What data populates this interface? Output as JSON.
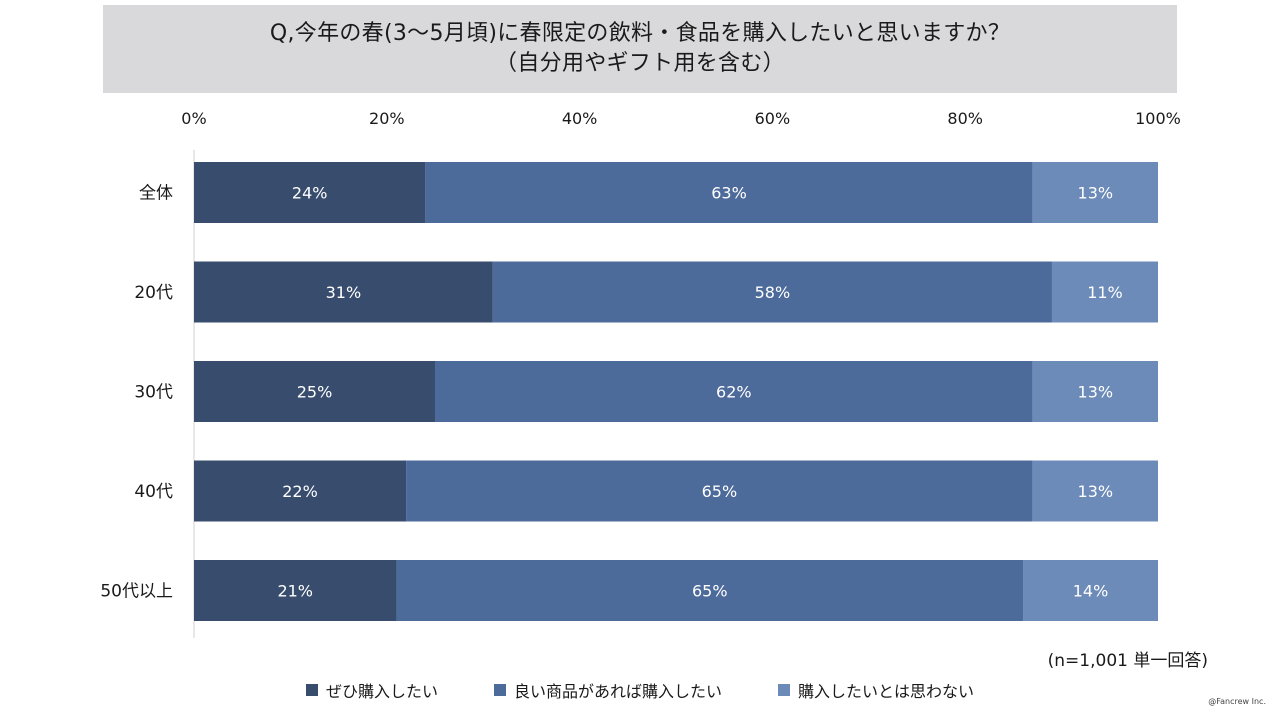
{
  "title_lines": [
    "Q,今年の春(3～5月頃)に春限定の飲料・食品を購入したいと思いますか？",
    "（自分用やギフト用を含む）"
  ],
  "note": "(n=1,001 単一回答)",
  "credit": "@Fancrew Inc.",
  "chart_data": {
    "type": "bar",
    "orientation": "horizontal",
    "stacked": "percent",
    "categories": [
      "全体",
      "20代",
      "30代",
      "40代",
      "50代以上"
    ],
    "series": [
      {
        "name": "ぜひ購入したい",
        "color": "#384c6e",
        "values": [
          24,
          31,
          25,
          22,
          21
        ],
        "labels": [
          "24%",
          "31%",
          "25%",
          "22%",
          "21%"
        ]
      },
      {
        "name": "良い商品があれば購入したい",
        "color": "#4c6a9a",
        "values": [
          63,
          58,
          62,
          65,
          65
        ],
        "labels": [
          "63%",
          "58%",
          "62%",
          "65%",
          "65%"
        ]
      },
      {
        "name": "購入したいとは思わない",
        "color": "#6c8bb8",
        "values": [
          13,
          11,
          13,
          13,
          14
        ],
        "labels": [
          "13%",
          "11%",
          "13%",
          "13%",
          "14%"
        ]
      }
    ],
    "xlim": [
      0,
      100
    ],
    "xticks": [
      "0%",
      "20%",
      "40%",
      "60%",
      "80%",
      "100%"
    ],
    "grid": false,
    "legend": "bottom"
  }
}
